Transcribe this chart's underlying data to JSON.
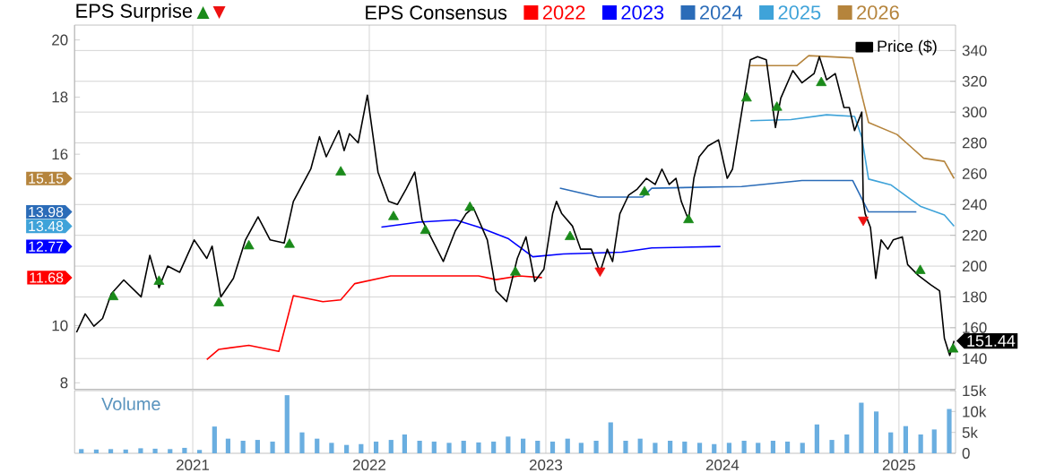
{
  "chart_data": [
    {
      "type": "line",
      "title": "EPS Surprise",
      "legend_title": "EPS Consensus",
      "legend": "top right",
      "grid": true,
      "tick_labels": "y",
      "xlim": [
        "2020-05-01",
        "2025-04-28"
      ],
      "xticks": [
        "2021",
        "2022",
        "2023",
        "2024",
        "2025"
      ],
      "ylim": [
        7.77,
        20.52
      ],
      "yticks": [
        8,
        10,
        16,
        18,
        20
      ],
      "y2lim": [
        120,
        356.5
      ],
      "y2ticks": [
        {
          "value": 120,
          "label": null
        },
        140,
        160,
        180,
        200,
        220,
        240,
        260,
        280,
        300,
        320,
        340
      ],
      "annotations": [
        "15.15",
        "13.98",
        "13.48",
        "12.77",
        "11.68"
      ],
      "series": [
        {
          "name": "2022",
          "type": "line",
          "color": "#ff0000",
          "x": [
            "2021-01-30",
            "2021-02-24",
            "2021-04-27",
            "2021-06-28",
            "2021-07-28",
            "2021-09-27",
            "2021-11-03",
            "2021-12-02",
            "2022-02-14",
            "2022-08-15",
            "2022-09-20",
            "2022-11-07",
            "2022-12-24"
          ],
          "values": [
            8.81,
            9.17,
            9.31,
            9.1,
            11.05,
            10.84,
            10.9,
            11.47,
            11.74,
            11.74,
            11.61,
            11.74,
            11.68
          ]
        },
        {
          "name": "2023",
          "type": "line",
          "color": "#0000ff",
          "x": [
            "2022-01-26",
            "2022-04-13",
            "2022-06-28",
            "2022-08-15",
            "2022-10-16",
            "2022-12-05",
            "2023-02-06",
            "2023-06-07",
            "2023-08-08",
            "2023-12-28"
          ],
          "values": [
            13.45,
            13.62,
            13.7,
            13.45,
            13.04,
            12.41,
            12.51,
            12.57,
            12.72,
            12.77
          ]
        },
        {
          "name": "2024",
          "type": "line",
          "color": "#2b6cb8",
          "x": [
            "2023-01-30",
            "2023-04-20",
            "2023-07-20",
            "2023-08-08",
            "2024-02-10",
            "2024-06-14",
            "2024-09-27",
            "2024-10-30",
            "2025-02-06"
          ],
          "values": [
            14.81,
            14.5,
            14.5,
            14.81,
            14.87,
            15.08,
            15.08,
            13.98,
            13.98
          ]
        },
        {
          "name": "2025",
          "type": "line",
          "color": "#3fa3d9",
          "x": [
            "2024-02-28",
            "2024-05-22",
            "2024-08-04",
            "2024-10-01",
            "2024-10-16",
            "2024-10-30",
            "2024-12-16",
            "2025-02-14",
            "2025-04-05",
            "2025-04-25"
          ],
          "values": [
            17.17,
            17.21,
            17.38,
            17.32,
            16.59,
            15.13,
            14.92,
            14.18,
            13.87,
            13.48
          ]
        },
        {
          "name": "2026",
          "type": "line",
          "color": "#b5843c",
          "x": [
            "2024-02-28",
            "2024-06-03",
            "2024-06-28",
            "2024-09-27",
            "2024-10-30",
            "2024-12-28",
            "2025-02-21",
            "2025-04-05",
            "2025-04-25"
          ],
          "values": [
            19.1,
            19.1,
            19.45,
            19.37,
            17.11,
            16.69,
            15.86,
            15.75,
            15.15
          ]
        },
        {
          "name": "Price ($)",
          "type": "line",
          "axis": "y2",
          "color": "#000000",
          "x": [
            "2020-05-05",
            "2020-05-23",
            "2020-06-10",
            "2020-06-28",
            "2020-07-16",
            "2020-08-11",
            "2020-09-16",
            "2020-10-04",
            "2020-10-23",
            "2020-11-10",
            "2020-12-05",
            "2021-01-04",
            "2021-01-30",
            "2021-02-10",
            "2021-02-28",
            "2021-03-26",
            "2021-04-20",
            "2021-05-16",
            "2021-06-10",
            "2021-07-09",
            "2021-07-28",
            "2021-09-02",
            "2021-09-20",
            "2021-10-04",
            "2021-10-30",
            "2021-11-10",
            "2021-11-21",
            "2021-12-09",
            "2021-12-28",
            "2022-01-19",
            "2022-02-10",
            "2022-02-28",
            "2022-03-18",
            "2022-04-05",
            "2022-04-20",
            "2022-05-08",
            "2022-06-03",
            "2022-06-28",
            "2022-07-20",
            "2022-08-04",
            "2022-09-02",
            "2022-09-20",
            "2022-10-12",
            "2022-11-03",
            "2022-11-21",
            "2022-12-09",
            "2022-12-28",
            "2023-01-15",
            "2023-01-23",
            "2023-02-03",
            "2023-02-25",
            "2023-03-14",
            "2023-04-05",
            "2023-04-23",
            "2023-05-08",
            "2023-05-19",
            "2023-06-03",
            "2023-06-21",
            "2023-07-09",
            "2023-07-28",
            "2023-08-15",
            "2023-08-29",
            "2023-09-13",
            "2023-09-27",
            "2023-10-08",
            "2023-10-23",
            "2023-11-03",
            "2023-11-14",
            "2023-12-02",
            "2023-12-24",
            "2024-01-11",
            "2024-01-22",
            "2024-02-10",
            "2024-02-28",
            "2024-03-14",
            "2024-04-01",
            "2024-04-20",
            "2024-05-01",
            "2024-05-26",
            "2024-06-14",
            "2024-07-09",
            "2024-07-20",
            "2024-08-04",
            "2024-08-22",
            "2024-09-09",
            "2024-09-20",
            "2024-10-01",
            "2024-10-16",
            "2024-10-19",
            "2024-10-23",
            "2024-11-03",
            "2024-11-14",
            "2024-11-25",
            "2024-12-09",
            "2024-12-20",
            "2025-01-08",
            "2025-01-19",
            "2025-02-10",
            "2025-03-07",
            "2025-03-26",
            "2025-04-05",
            "2025-04-16",
            "2025-04-25"
          ],
          "values": [
            157,
            169,
            161,
            166,
            182,
            191,
            180,
            207,
            186,
            200,
            196,
            217,
            205,
            213,
            180,
            192,
            217,
            232,
            217,
            215,
            242,
            263,
            284,
            271,
            288,
            275,
            286,
            280,
            311,
            261,
            242,
            240,
            250,
            261,
            230,
            219,
            203,
            223,
            234,
            238,
            217,
            184,
            177,
            205,
            219,
            190,
            198,
            234,
            242,
            234,
            226,
            211,
            211,
            196,
            211,
            203,
            234,
            246,
            250,
            257,
            253,
            263,
            253,
            257,
            242,
            230,
            257,
            271,
            278,
            282,
            257,
            263,
            300,
            334,
            336,
            334,
            290,
            309,
            327,
            319,
            325,
            336,
            321,
            325,
            303,
            303,
            288,
            300,
            242,
            234,
            225,
            192,
            217,
            211,
            217,
            219,
            201,
            194,
            188,
            184,
            153,
            142,
            151.44
          ],
          "value_labels": [
            null,
            null,
            null,
            null,
            null,
            null,
            null,
            null,
            null,
            null,
            null,
            null,
            null,
            null,
            null,
            null,
            null,
            null,
            null,
            null,
            null,
            null,
            null,
            null,
            null,
            null,
            null,
            null,
            null,
            null,
            null,
            null,
            null,
            null,
            null,
            null,
            null,
            null,
            null,
            null,
            null,
            null,
            null,
            null,
            null,
            null,
            null,
            null,
            null,
            null,
            null,
            null,
            null,
            null,
            null,
            null,
            null,
            null,
            null,
            null,
            null,
            null,
            null,
            null,
            null,
            null,
            null,
            null,
            null,
            null,
            null,
            null,
            null,
            null,
            null,
            null,
            null,
            null,
            null,
            null,
            null,
            null,
            null,
            null,
            null,
            null,
            null,
            null,
            null,
            null,
            null,
            null,
            null,
            null,
            null,
            null,
            null,
            null,
            null,
            null,
            null,
            null,
            "151.44"
          ]
        },
        {
          "type": "scatter",
          "axis": "y2",
          "marker": "triangle",
          "color": "#1a8a1a",
          "x": [
            "2020-07-20",
            "2020-10-23",
            "2021-02-24",
            "2021-04-27",
            "2021-07-20",
            "2021-11-03",
            "2022-02-20",
            "2022-04-27",
            "2022-07-28",
            "2022-10-30",
            "2023-02-20",
            "2023-07-24",
            "2023-10-23",
            "2024-02-20",
            "2024-04-23",
            "2024-07-24",
            "2025-02-14",
            "2025-04-23"
          ],
          "values": [
            180,
            190,
            176,
            213,
            214,
            261,
            232,
            223,
            238,
            196,
            219,
            248,
            230,
            309,
            303,
            319,
            197,
            146
          ]
        },
        {
          "type": "scatter",
          "axis": "y2",
          "marker": "triangle",
          "color": "#ee1111",
          "x": [
            "2023-04-23",
            "2024-10-19"
          ],
          "values": [
            197,
            230
          ]
        }
      ]
    },
    {
      "type": "bar",
      "title": "Volume",
      "color": "#6aaee0",
      "grid": "x",
      "xlim": [
        "2020-05-01",
        "2025-04-28"
      ],
      "xticks": [
        "2021",
        "2022",
        "2023",
        "2024",
        "2025"
      ],
      "ylim": [
        0,
        15000
      ],
      "yticks": [
        {
          "value": 0,
          "label": "0"
        },
        {
          "value": 5000,
          "label": "5k"
        },
        {
          "value": 10000,
          "label": "10k"
        },
        {
          "value": 15000,
          "label": "15k"
        }
      ],
      "x": [
        "2020-05-15",
        "2020-06-15",
        "2020-07-15",
        "2020-08-15",
        "2020-09-15",
        "2020-10-15",
        "2020-11-15",
        "2020-12-15",
        "2021-01-15",
        "2021-02-15",
        "2021-03-15",
        "2021-04-15",
        "2021-05-15",
        "2021-06-15",
        "2021-07-15",
        "2021-08-15",
        "2021-09-15",
        "2021-10-15",
        "2021-11-15",
        "2021-12-15",
        "2022-01-15",
        "2022-02-15",
        "2022-03-15",
        "2022-04-15",
        "2022-05-15",
        "2022-06-15",
        "2022-07-15",
        "2022-08-15",
        "2022-09-15",
        "2022-10-15",
        "2022-11-15",
        "2022-12-15",
        "2023-01-15",
        "2023-02-15",
        "2023-03-15",
        "2023-04-15",
        "2023-05-15",
        "2023-06-15",
        "2023-07-15",
        "2023-08-15",
        "2023-09-15",
        "2023-10-15",
        "2023-11-15",
        "2023-12-15",
        "2024-01-15",
        "2024-02-15",
        "2024-03-15",
        "2024-04-15",
        "2024-05-15",
        "2024-06-15",
        "2024-07-15",
        "2024-08-15",
        "2024-09-15",
        "2024-10-15",
        "2024-11-15",
        "2024-12-15",
        "2025-01-15",
        "2025-02-15",
        "2025-03-15",
        "2025-04-15"
      ],
      "values": [
        1000,
        900,
        1000,
        900,
        1200,
        1100,
        1000,
        1300,
        800,
        6400,
        3500,
        3000,
        3200,
        2800,
        13900,
        5000,
        3500,
        2500,
        2000,
        2200,
        2800,
        3200,
        4500,
        3000,
        2800,
        2500,
        3000,
        2600,
        2800,
        4000,
        3500,
        3000,
        2800,
        3500,
        2500,
        3000,
        7400,
        3000,
        3500,
        2500,
        3000,
        2800,
        2500,
        2200,
        2500,
        3000,
        2500,
        3000,
        2800,
        2500,
        6900,
        3200,
        4500,
        12100,
        10000,
        5000,
        6500,
        4500,
        5700,
        10600
      ]
    }
  ]
}
